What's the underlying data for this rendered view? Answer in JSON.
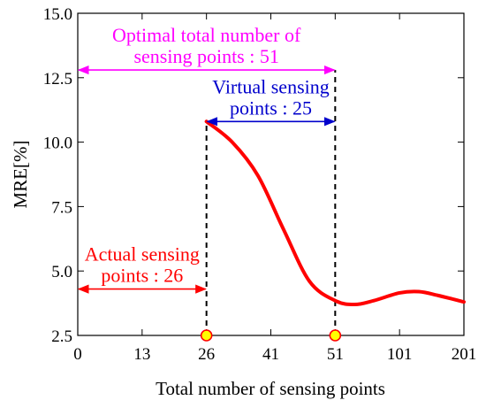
{
  "chart_data": {
    "type": "line",
    "xlabel": "Total number of sensing points",
    "ylabel": "MRE[%]",
    "ylim": [
      2.5,
      15.0
    ],
    "x_tick_labels": [
      "0",
      "13",
      "26",
      "41",
      "51",
      "101",
      "201"
    ],
    "y_ticks": [
      2.5,
      5.0,
      7.5,
      10.0,
      12.5,
      15.0
    ],
    "y_tick_labels": [
      "2.5",
      "5.0",
      "7.5",
      "10.0",
      "12.5",
      "15.0"
    ],
    "series": [
      {
        "color": "#ff0000",
        "points": [
          {
            "tick": 2.0,
            "y": 10.8
          },
          {
            "tick": 2.4,
            "y": 10.0
          },
          {
            "tick": 2.8,
            "y": 8.7
          },
          {
            "tick": 3.2,
            "y": 6.6
          },
          {
            "tick": 3.6,
            "y": 4.6
          },
          {
            "tick": 4.0,
            "y": 3.85
          },
          {
            "tick": 4.3,
            "y": 3.7
          },
          {
            "tick": 4.6,
            "y": 3.85
          },
          {
            "tick": 5.0,
            "y": 4.15
          },
          {
            "tick": 5.3,
            "y": 4.2
          },
          {
            "tick": 5.6,
            "y": 4.05
          },
          {
            "tick": 6.0,
            "y": 3.8
          }
        ]
      }
    ],
    "markers": [
      {
        "tick": 2,
        "y": 2.5,
        "color": "#ffff00",
        "stroke": "#ff0000"
      },
      {
        "tick": 4,
        "y": 2.5,
        "color": "#ffff00",
        "stroke": "#ff0000"
      }
    ],
    "vlines": [
      {
        "tick": 2,
        "y_top": 10.8
      },
      {
        "tick": 4,
        "y_top": 12.8
      }
    ],
    "annotations": [
      {
        "lines": [
          "Optimal total number of",
          "sensing points : 51"
        ],
        "color": "#ff00ff",
        "arrow": {
          "from_tick": 0,
          "to_tick": 4,
          "y": 12.8
        }
      },
      {
        "lines": [
          "Virtual sensing",
          "points : 25"
        ],
        "color": "#0000cc",
        "arrow": {
          "from_tick": 2,
          "to_tick": 4,
          "y": 10.8
        }
      },
      {
        "lines": [
          "Actual sensing",
          "points : 26"
        ],
        "color": "#ff0000",
        "arrow": {
          "from_tick": 0,
          "to_tick": 2,
          "y": 4.3
        }
      }
    ]
  }
}
